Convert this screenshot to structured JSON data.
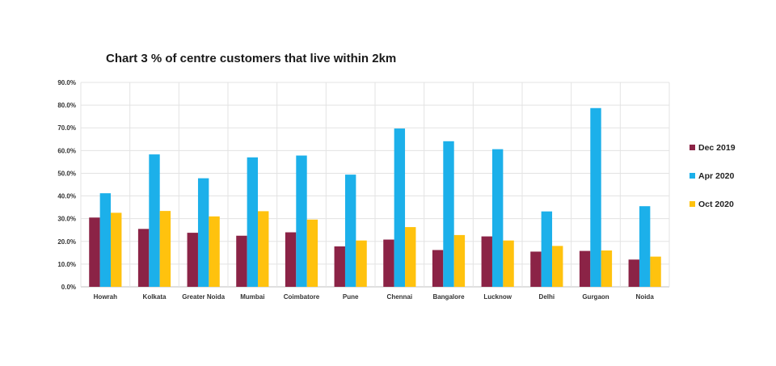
{
  "chart_data": {
    "type": "bar",
    "title": "Chart 3 % of centre customers that live within 2km",
    "xlabel": "",
    "ylabel": "",
    "ylim": [
      0,
      90
    ],
    "yticks": [
      "0.0%",
      "10.0%",
      "20.0%",
      "30.0%",
      "40.0%",
      "50.0%",
      "60.0%",
      "70.0%",
      "80.0%",
      "90.0%"
    ],
    "grid": true,
    "legend_position": "right",
    "categories": [
      "Howrah",
      "Kolkata",
      "Greater Noida",
      "Mumbai",
      "Coimbatore",
      "Pune",
      "Chennai",
      "Bangalore",
      "Lucknow",
      "Delhi",
      "Gurgaon",
      "Noida"
    ],
    "series": [
      {
        "name": "Dec 2019",
        "color": "#8B2346",
        "values": [
          30.5,
          25.5,
          23.8,
          22.5,
          24.0,
          17.8,
          20.8,
          16.2,
          22.2,
          15.5,
          15.8,
          12.0
        ]
      },
      {
        "name": "Apr 2020",
        "color": "#1CB0EA",
        "values": [
          41.2,
          58.3,
          47.8,
          57.0,
          57.8,
          49.4,
          69.7,
          64.1,
          60.6,
          33.2,
          78.7,
          35.5
        ]
      },
      {
        "name": "Oct 2020",
        "color": "#FFC20E",
        "values": [
          32.6,
          33.4,
          31.0,
          33.3,
          29.6,
          20.4,
          26.3,
          22.8,
          20.4,
          18.0,
          16.0,
          13.3
        ]
      }
    ]
  }
}
